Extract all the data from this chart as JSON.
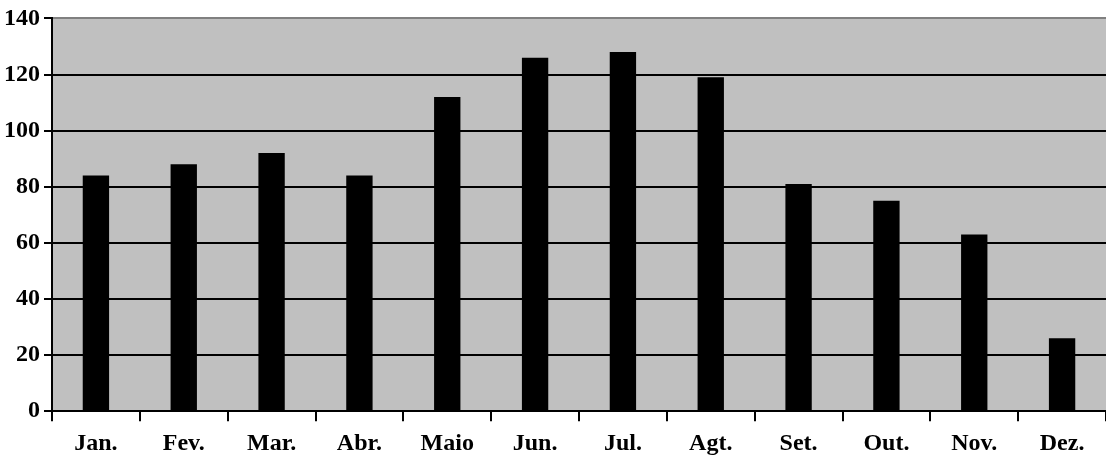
{
  "chart_data": {
    "type": "bar",
    "categories": [
      "Jan.",
      "Fev.",
      "Mar.",
      "Abr.",
      "Maio",
      "Jun.",
      "Jul.",
      "Agt.",
      "Set.",
      "Out.",
      "Nov.",
      "Dez."
    ],
    "values": [
      84,
      88,
      92,
      84,
      112,
      126,
      128,
      119,
      81,
      75,
      63,
      26
    ],
    "color": "#000000",
    "ylim": [
      0,
      140
    ],
    "yticks": [
      0,
      20,
      40,
      60,
      80,
      100,
      120,
      140
    ],
    "grid": "y",
    "legend": false
  }
}
